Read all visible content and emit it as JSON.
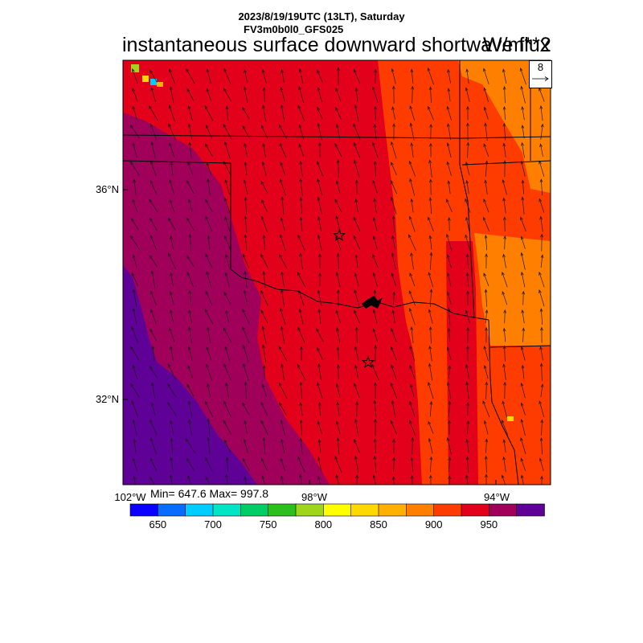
{
  "header": {
    "datetime": "2023/8/19/19UTC (13LT), Saturday",
    "model": "FV3m0b0l0_GFS025",
    "title": "instantaneous surface downward shortwave flux",
    "units": "W/m**2"
  },
  "map": {
    "lat_labels": [
      "36°N",
      "32°N"
    ],
    "lon_labels": [
      "102°W",
      "98°W",
      "94°W"
    ],
    "stats": "Min= 647.6 Max= 997.8",
    "vector_reference": "8",
    "markers": [
      "star",
      "star"
    ]
  },
  "colorbar": {
    "labels": [
      "650",
      "700",
      "750",
      "800",
      "850",
      "900",
      "950"
    ],
    "colors": [
      "#0a00ff",
      "#0a6cff",
      "#00cdff",
      "#00e5c4",
      "#00cd66",
      "#2cbf1d",
      "#9fd61b",
      "#ffff00",
      "#ffd800",
      "#ffb000",
      "#ff8000",
      "#ff3c00",
      "#e2001a",
      "#a0005a",
      "#5f0096"
    ]
  },
  "palette": {
    "purple": "#5f0096",
    "magenta": "#a0005a",
    "red": "#e2001a",
    "redorange": "#ff3c00",
    "orange": "#ff8000"
  }
}
